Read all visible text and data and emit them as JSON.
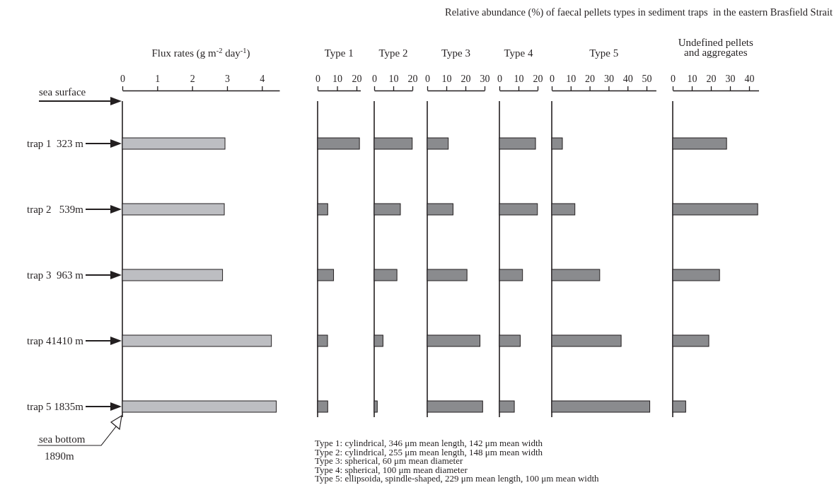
{
  "chart_data": [
    {
      "type": "bar",
      "orientation": "horizontal",
      "title": "Flux rates (g m$^{-2}$ day$^{-1}$)",
      "categories": [
        "trap 1  323 m",
        "trap 2   539m",
        "trap 3  963 m",
        "trap 41410 m",
        "trap 5 1835m"
      ],
      "values": [
        2.94,
        2.92,
        2.87,
        4.27,
        4.41
      ],
      "color": "#bdbec2",
      "xlim": [
        0,
        4.5
      ],
      "xticks": [
        0,
        1,
        2,
        3,
        4
      ],
      "annotations": [
        "sea surface",
        "sea bottom",
        "1890m"
      ]
    },
    {
      "type": "bar",
      "orientation": "horizontal",
      "title": "Type 1",
      "categories": [
        "trap 1  323 m",
        "trap 2   539m",
        "trap 3  963 m",
        "trap 41410 m",
        "trap 5 1835m"
      ],
      "values": [
        21.5,
        5.2,
        8.2,
        5.1,
        5.2
      ],
      "color": "#8a8b8e",
      "xlim": [
        0,
        22
      ],
      "xticks": [
        0,
        10,
        20
      ],
      "tick_labels": "x"
    },
    {
      "type": "bar",
      "orientation": "horizontal",
      "title": "Type 2",
      "categories": [
        "trap 1  323 m",
        "trap 2   539m",
        "trap 3  963 m",
        "trap 41410 m",
        "trap 5 1835m"
      ],
      "values": [
        19.9,
        13.7,
        11.9,
        4.6,
        1.6
      ],
      "color": "#8a8b8e",
      "xlim": [
        0,
        20
      ],
      "xticks": [
        0,
        10,
        20
      ],
      "tick_labels": "x"
    },
    {
      "type": "bar",
      "orientation": "horizontal",
      "title": "Type 3",
      "categories": [
        "trap 1  323 m",
        "trap 2   539m",
        "trap 3  963 m",
        "trap 41410 m",
        "trap 5 1835m"
      ],
      "values": [
        11.0,
        13.5,
        20.8,
        27.6,
        29.0
      ],
      "color": "#8a8b8e",
      "xlim": [
        0,
        30
      ],
      "xticks": [
        0,
        10,
        20,
        30
      ],
      "tick_labels": "x"
    },
    {
      "type": "bar",
      "orientation": "horizontal",
      "title": "Type 4",
      "categories": [
        "trap 1  323 m",
        "trap 2   539m",
        "trap 3  963 m",
        "trap 41410 m",
        "trap 5 1835m"
      ],
      "values": [
        18.9,
        19.9,
        12.1,
        10.9,
        7.8
      ],
      "color": "#8a8b8e",
      "xlim": [
        0,
        20
      ],
      "xticks": [
        0,
        10,
        20
      ],
      "tick_labels": "x"
    },
    {
      "type": "bar",
      "orientation": "horizontal",
      "title": "Type 5",
      "categories": [
        "trap 1  323 m",
        "trap 2   539m",
        "trap 3  963 m",
        "trap 41410 m",
        "trap 5 1835m"
      ],
      "values": [
        5.6,
        12.2,
        25.3,
        36.6,
        51.7
      ],
      "color": "#8a8b8e",
      "xlim": [
        0,
        55
      ],
      "xticks": [
        0,
        10,
        20,
        30,
        40,
        50
      ],
      "tick_labels": "x"
    },
    {
      "type": "bar",
      "orientation": "horizontal",
      "title": "Undefined pellets\nand aggregates",
      "categories": [
        "trap 1  323 m",
        "trap 2   539m",
        "trap 3  963 m",
        "trap 41410 m",
        "trap 5 1835m"
      ],
      "values": [
        28.2,
        44.5,
        24.5,
        18.9,
        6.8
      ],
      "color": "#8a8b8e",
      "xlim": [
        0,
        45
      ],
      "xticks": [
        0,
        10,
        20,
        30,
        40
      ],
      "tick_labels": "x"
    },
    {
      "type": "other",
      "title": "Relative abundance (%) of faecal pellets types in sediment traps  in the eastern Brasfield Strait",
      "annotations": [
        "Type 1: cylindrical, 346 μm mean length, 142 μm mean width",
        "Type 2: cylindrical, 255 μm mean length, 148 μm mean width",
        "Type 3: spherical, 60 μm mean diameter",
        "Type 4: spherical, 100 μm mean diameter",
        "Type 5: ellipsoida, spindle-shaped, 229 μm mean length, 100 μm mean width"
      ]
    }
  ]
}
